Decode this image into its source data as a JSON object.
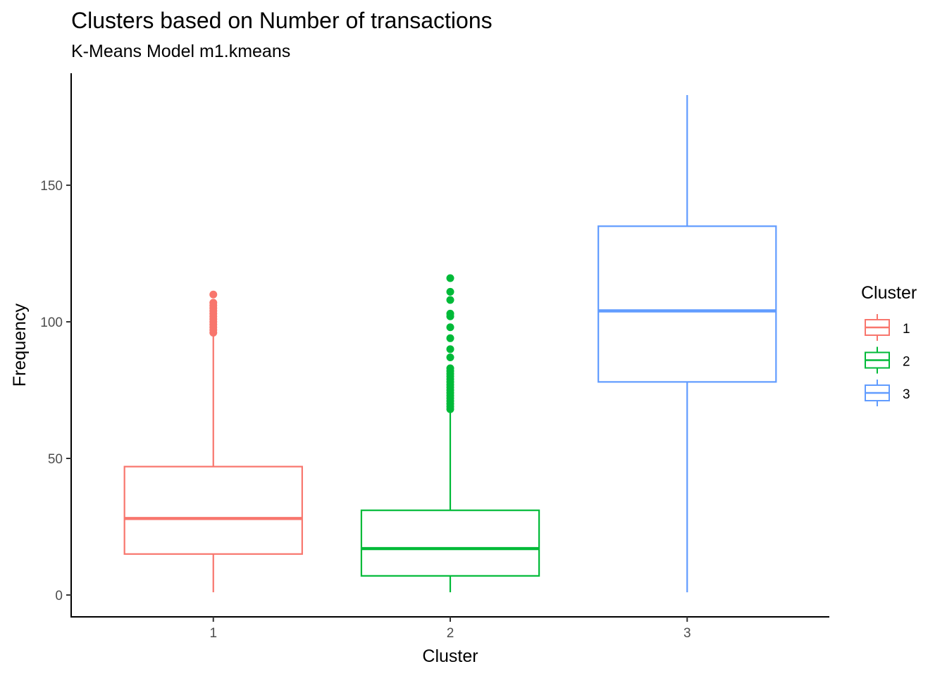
{
  "chart_data": {
    "type": "boxplot",
    "title": "Clusters based on Number of transactions",
    "subtitle": "K-Means Model m1.kmeans",
    "xlabel": "Cluster",
    "ylabel": "Frequency",
    "categories": [
      "1",
      "2",
      "3"
    ],
    "ylim": [
      -8,
      191
    ],
    "yticks": [
      0,
      50,
      100,
      150
    ],
    "grid": false,
    "legend": {
      "title": "Cluster",
      "position": "right",
      "entries": [
        "1",
        "2",
        "3"
      ]
    },
    "colors": [
      "#F8766D",
      "#00BA38",
      "#619CFF"
    ],
    "boxes": [
      {
        "category": "1",
        "min": 1,
        "q1": 15,
        "median": 28,
        "q3": 47,
        "max": 95,
        "outliers": [
          96,
          97,
          98,
          99,
          100,
          101,
          102,
          103,
          104,
          105,
          106,
          107,
          110
        ]
      },
      {
        "category": "2",
        "min": 1,
        "q1": 7,
        "median": 17,
        "q3": 31,
        "max": 67,
        "outliers": [
          68,
          69,
          70,
          71,
          72,
          73,
          74,
          75,
          76,
          77,
          78,
          79,
          80,
          81,
          82,
          83,
          87,
          90,
          94,
          98,
          102,
          103,
          108,
          111,
          116
        ]
      },
      {
        "category": "3",
        "min": 1,
        "q1": 78,
        "median": 104,
        "q3": 135,
        "max": 183,
        "outliers": []
      }
    ]
  }
}
